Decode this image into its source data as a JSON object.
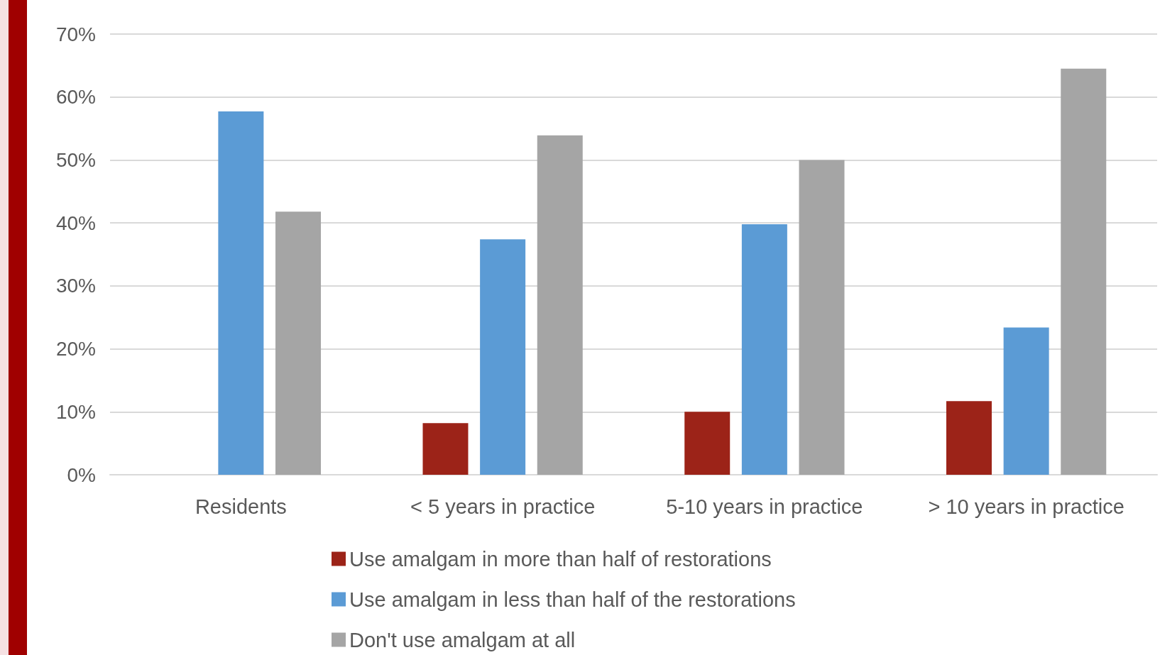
{
  "chart_data": {
    "type": "bar",
    "categories": [
      "Residents",
      "< 5 years in practice",
      "5-10 years in practice",
      "> 10 years in practice"
    ],
    "series": [
      {
        "name": "Use amalgam in more than half of restorations",
        "color": "#9c2318",
        "values": [
          0,
          8.2,
          10,
          11.7
        ]
      },
      {
        "name": "Use amalgam in less than half of the restorations",
        "color": "#5b9bd5",
        "values": [
          57.7,
          37.4,
          39.8,
          23.4
        ]
      },
      {
        "name": "Don't use amalgam at all",
        "color": "#a5a5a5",
        "values": [
          41.8,
          53.9,
          50,
          64.5
        ]
      }
    ],
    "ylim": [
      0,
      70
    ],
    "yticks": [
      {
        "value": 0,
        "label": "0%"
      },
      {
        "value": 10,
        "label": "10%"
      },
      {
        "value": 20,
        "label": "20%"
      },
      {
        "value": 30,
        "label": "30%"
      },
      {
        "value": 40,
        "label": "40%"
      },
      {
        "value": 50,
        "label": "50%"
      },
      {
        "value": 60,
        "label": "60%"
      },
      {
        "value": 70,
        "label": "70%"
      }
    ],
    "grid": "y",
    "legend": "bottom"
  }
}
